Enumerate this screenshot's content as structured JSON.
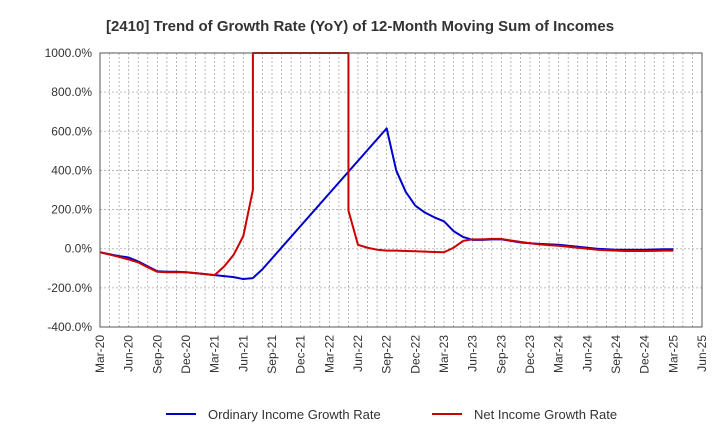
{
  "chart_data": {
    "type": "line",
    "title": "[2410]  Trend of Growth Rate (YoY) of 12-Month Moving Sum of Incomes",
    "xlabel": "",
    "ylabel": "",
    "ylim": [
      -400,
      1000
    ],
    "y_ticks": [
      1000,
      800,
      600,
      400,
      200,
      0,
      -200,
      -400
    ],
    "y_tick_labels": [
      "1000.0%",
      "800.0%",
      "600.0%",
      "400.0%",
      "200.0%",
      "0.0%",
      "-200.0%",
      "-400.0%"
    ],
    "x_ticks": [
      "Mar-20",
      "Jun-20",
      "Sep-20",
      "Dec-20",
      "Mar-21",
      "Jun-21",
      "Sep-21",
      "Dec-21",
      "Mar-22",
      "Jun-22",
      "Sep-22",
      "Dec-22",
      "Mar-23",
      "Jun-23",
      "Sep-23",
      "Dec-23",
      "Mar-24",
      "Jun-24",
      "Sep-24",
      "Dec-24",
      "Mar-25",
      "Jun-25"
    ],
    "grid": true,
    "legend_position": "bottom",
    "series": [
      {
        "name": "Ordinary Income Growth Rate",
        "color": "#0000cc",
        "points": [
          [
            "Mar-20",
            -18
          ],
          [
            "Apr-20",
            -28
          ],
          [
            "May-20",
            -38
          ],
          [
            "Jun-20",
            -45
          ],
          [
            "Jul-20",
            -65
          ],
          [
            "Aug-20",
            -90
          ],
          [
            "Sep-20",
            -115
          ],
          [
            "Oct-20",
            -118
          ],
          [
            "Nov-20",
            -118
          ],
          [
            "Dec-20",
            -120
          ],
          [
            "Jan-21",
            -125
          ],
          [
            "Feb-21",
            -130
          ],
          [
            "Mar-21",
            -135
          ],
          [
            "Apr-21",
            -140
          ],
          [
            "May-21",
            -145
          ],
          [
            "Jun-21",
            -155
          ],
          [
            "Jul-21",
            -150
          ],
          [
            "Aug-21",
            -105
          ],
          [
            "Sep-22",
            615
          ],
          [
            "Oct-22",
            400
          ],
          [
            "Nov-22",
            290
          ],
          [
            "Dec-22",
            220
          ],
          [
            "Jan-23",
            185
          ],
          [
            "Feb-23",
            160
          ],
          [
            "Mar-23",
            140
          ],
          [
            "Apr-23",
            90
          ],
          [
            "May-23",
            60
          ],
          [
            "Jun-23",
            45
          ],
          [
            "Jul-23",
            45
          ],
          [
            "Aug-23",
            48
          ],
          [
            "Sep-23",
            48
          ],
          [
            "Oct-23",
            40
          ],
          [
            "Nov-23",
            32
          ],
          [
            "Dec-23",
            28
          ],
          [
            "Jan-24",
            25
          ],
          [
            "Feb-24",
            22
          ],
          [
            "Mar-24",
            20
          ],
          [
            "Apr-24",
            15
          ],
          [
            "May-24",
            10
          ],
          [
            "Jun-24",
            5
          ],
          [
            "Jul-24",
            0
          ],
          [
            "Aug-24",
            -3
          ],
          [
            "Sep-24",
            -5
          ],
          [
            "Oct-24",
            -5
          ],
          [
            "Nov-24",
            -5
          ],
          [
            "Dec-24",
            -5
          ],
          [
            "Jan-25",
            -4
          ],
          [
            "Feb-25",
            -3
          ],
          [
            "Mar-25",
            -3
          ]
        ]
      },
      {
        "name": "Net Income Growth Rate",
        "color": "#cc0000",
        "points": [
          [
            "Mar-20",
            -18
          ],
          [
            "Apr-20",
            -30
          ],
          [
            "May-20",
            -42
          ],
          [
            "Jun-20",
            -55
          ],
          [
            "Jul-20",
            -70
          ],
          [
            "Aug-20",
            -95
          ],
          [
            "Sep-20",
            -118
          ],
          [
            "Oct-20",
            -120
          ],
          [
            "Nov-20",
            -120
          ],
          [
            "Dec-20",
            -120
          ],
          [
            "Jan-21",
            -125
          ],
          [
            "Feb-21",
            -130
          ],
          [
            "Mar-21",
            -135
          ],
          [
            "Apr-21",
            -90
          ],
          [
            "May-21",
            -30
          ],
          [
            "Jun-21",
            65
          ],
          [
            "Jul-21",
            300
          ],
          [
            "Jul-21",
            1000
          ],
          [
            "May-22",
            1000
          ],
          [
            "May-22",
            195
          ],
          [
            "Jun-22",
            20
          ],
          [
            "Jul-22",
            5
          ],
          [
            "Aug-22",
            -5
          ],
          [
            "Sep-22",
            -10
          ],
          [
            "Oct-22",
            -10
          ],
          [
            "Nov-22",
            -12
          ],
          [
            "Dec-22",
            -13
          ],
          [
            "Jan-23",
            -15
          ],
          [
            "Feb-23",
            -17
          ],
          [
            "Mar-23",
            -18
          ],
          [
            "Apr-23",
            5
          ],
          [
            "May-23",
            40
          ],
          [
            "Jun-23",
            48
          ],
          [
            "Jul-23",
            48
          ],
          [
            "Aug-23",
            50
          ],
          [
            "Sep-23",
            50
          ],
          [
            "Oct-23",
            42
          ],
          [
            "Nov-23",
            35
          ],
          [
            "Dec-23",
            28
          ],
          [
            "Jan-24",
            22
          ],
          [
            "Feb-24",
            18
          ],
          [
            "Mar-24",
            15
          ],
          [
            "Apr-24",
            10
          ],
          [
            "May-24",
            5
          ],
          [
            "Jun-24",
            0
          ],
          [
            "Jul-24",
            -5
          ],
          [
            "Aug-24",
            -8
          ],
          [
            "Sep-24",
            -10
          ],
          [
            "Oct-24",
            -12
          ],
          [
            "Nov-24",
            -12
          ],
          [
            "Dec-24",
            -12
          ],
          [
            "Jan-25",
            -11
          ],
          [
            "Feb-25",
            -10
          ],
          [
            "Mar-25",
            -10
          ]
        ]
      }
    ]
  }
}
